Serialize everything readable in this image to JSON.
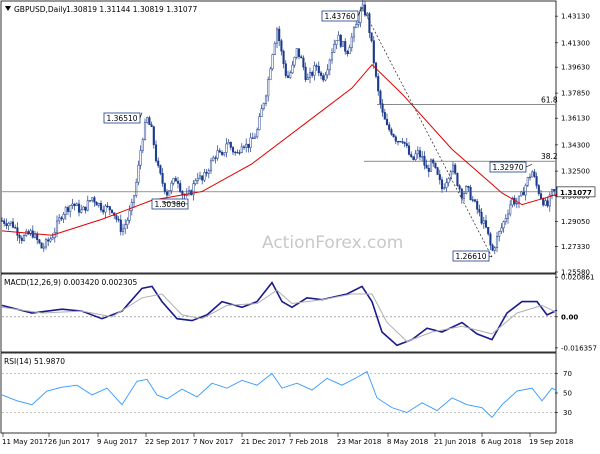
{
  "chart_data": [
    {
      "type": "candlestick",
      "panel": "price",
      "title": "GBPUSD,Daily",
      "ohlc_header": "1.30819 1.31144 1.30819 1.31077",
      "y_tick_labels": [
        "1.43130",
        "1.41300",
        "1.39630",
        "1.37850",
        "1.36130",
        "1.34300",
        "1.32500",
        "1.30800",
        "1.29050",
        "1.27330",
        "1.25580"
      ],
      "ylim": [
        1.2558,
        1.441
      ],
      "current_price": "1.31077",
      "x_tick_labels": [
        "11 May 2017",
        "26 Jun 2017",
        "9 Aug 2017",
        "22 Sep 2017",
        "7 Nov 2017",
        "21 Dec 2017",
        "7 Feb 2018",
        "23 Mar 2018",
        "8 May 2018",
        "21 Jun 2018",
        "6 Aug 2018",
        "19 Sep 2018"
      ],
      "key_points": [
        {
          "label": "1.36510",
          "value": 1.3651,
          "date": "20 Sep 2017"
        },
        {
          "label": "1.30380",
          "value": 1.3038,
          "date": "3 Oct 2017"
        },
        {
          "label": "1.43760",
          "value": 1.4376,
          "date": "17 Apr 2018"
        },
        {
          "label": "1.26610",
          "value": 1.2661,
          "date": "15 Aug 2018"
        },
        {
          "label": "1.32970",
          "value": 1.3297,
          "date": "20 Sep 2018"
        }
      ],
      "fib_levels": [
        {
          "label": "61.8",
          "value": 1.3708
        },
        {
          "label": "38.2",
          "value": 1.3318
        }
      ],
      "close_path": [
        [
          0,
          1.291
        ],
        [
          10,
          1.289
        ],
        [
          20,
          1.279
        ],
        [
          30,
          1.283
        ],
        [
          40,
          1.272
        ],
        [
          50,
          1.28
        ],
        [
          60,
          1.296
        ],
        [
          70,
          1.303
        ],
        [
          80,
          1.297
        ],
        [
          90,
          1.307
        ],
        [
          100,
          1.3
        ],
        [
          110,
          1.299
        ],
        [
          120,
          1.284
        ],
        [
          125,
          1.291
        ],
        [
          130,
          1.301
        ],
        [
          135,
          1.32
        ],
        [
          140,
          1.347
        ],
        [
          145,
          1.361
        ],
        [
          150,
          1.352
        ],
        [
          155,
          1.329
        ],
        [
          160,
          1.318
        ],
        [
          165,
          1.31
        ],
        [
          170,
          1.316
        ],
        [
          175,
          1.321
        ],
        [
          180,
          1.31
        ],
        [
          185,
          1.307
        ],
        [
          190,
          1.312
        ],
        [
          195,
          1.323
        ],
        [
          200,
          1.318
        ],
        [
          205,
          1.325
        ],
        [
          210,
          1.332
        ],
        [
          215,
          1.338
        ],
        [
          220,
          1.334
        ],
        [
          225,
          1.346
        ],
        [
          230,
          1.34
        ],
        [
          235,
          1.336
        ],
        [
          240,
          1.345
        ],
        [
          245,
          1.342
        ],
        [
          250,
          1.346
        ],
        [
          255,
          1.352
        ],
        [
          260,
          1.368
        ],
        [
          265,
          1.382
        ],
        [
          270,
          1.405
        ],
        [
          275,
          1.423
        ],
        [
          280,
          1.404
        ],
        [
          285,
          1.388
        ],
        [
          290,
          1.395
        ],
        [
          295,
          1.408
        ],
        [
          300,
          1.4
        ],
        [
          305,
          1.387
        ],
        [
          310,
          1.392
        ],
        [
          315,
          1.398
        ],
        [
          320,
          1.388
        ],
        [
          325,
          1.396
        ],
        [
          330,
          1.408
        ],
        [
          335,
          1.418
        ],
        [
          340,
          1.412
        ],
        [
          345,
          1.407
        ],
        [
          350,
          1.417
        ],
        [
          355,
          1.426
        ],
        [
          360,
          1.437
        ],
        [
          365,
          1.432
        ],
        [
          370,
          1.41
        ],
        [
          375,
          1.383
        ],
        [
          380,
          1.365
        ],
        [
          385,
          1.355
        ],
        [
          390,
          1.352
        ],
        [
          395,
          1.346
        ],
        [
          400,
          1.348
        ],
        [
          405,
          1.34
        ],
        [
          410,
          1.331
        ],
        [
          415,
          1.338
        ],
        [
          420,
          1.334
        ],
        [
          425,
          1.325
        ],
        [
          430,
          1.331
        ],
        [
          435,
          1.322
        ],
        [
          440,
          1.313
        ],
        [
          445,
          1.32
        ],
        [
          450,
          1.329
        ],
        [
          455,
          1.318
        ],
        [
          460,
          1.309
        ],
        [
          465,
          1.313
        ],
        [
          470,
          1.306
        ],
        [
          475,
          1.299
        ],
        [
          480,
          1.291
        ],
        [
          485,
          1.284
        ],
        [
          490,
          1.269
        ],
        [
          495,
          1.279
        ],
        [
          500,
          1.287
        ],
        [
          505,
          1.296
        ],
        [
          510,
          1.306
        ],
        [
          515,
          1.303
        ],
        [
          520,
          1.309
        ],
        [
          525,
          1.318
        ],
        [
          530,
          1.325
        ],
        [
          535,
          1.314
        ],
        [
          540,
          1.306
        ],
        [
          545,
          1.3
        ],
        [
          550,
          1.31
        ],
        [
          555,
          1.3108
        ]
      ],
      "ma_path": [
        [
          0,
          1.284
        ],
        [
          50,
          1.281
        ],
        [
          100,
          1.292
        ],
        [
          150,
          1.305
        ],
        [
          200,
          1.311
        ],
        [
          250,
          1.33
        ],
        [
          300,
          1.356
        ],
        [
          350,
          1.382
        ],
        [
          370,
          1.398
        ],
        [
          400,
          1.378
        ],
        [
          450,
          1.34
        ],
        [
          500,
          1.31
        ],
        [
          520,
          1.302
        ],
        [
          555,
          1.309
        ]
      ],
      "colors": {
        "ma": "#e00000",
        "candles": "#1a3a8c",
        "background": "#ffffff"
      }
    },
    {
      "type": "line",
      "panel": "macd",
      "title": "MACD(12,26,9) 0.003420 0.002305",
      "y_tick_labels": [
        "0.020861",
        "0.00",
        "-0.016357"
      ],
      "ylim": [
        -0.018,
        0.022
      ],
      "series": [
        {
          "name": "MACD",
          "color": "#1a1a8c",
          "values": [
            [
              0,
              0.006
            ],
            [
              30,
              0.002
            ],
            [
              60,
              0.004
            ],
            [
              80,
              0.003
            ],
            [
              100,
              -0.001
            ],
            [
              120,
              0.003
            ],
            [
              140,
              0.015
            ],
            [
              150,
              0.016
            ],
            [
              160,
              0.008
            ],
            [
              175,
              -0.001
            ],
            [
              190,
              -0.002
            ],
            [
              205,
              0.001
            ],
            [
              220,
              0.008
            ],
            [
              240,
              0.005
            ],
            [
              255,
              0.008
            ],
            [
              270,
              0.018
            ],
            [
              280,
              0.008
            ],
            [
              290,
              0.005
            ],
            [
              305,
              0.01
            ],
            [
              320,
              0.009
            ],
            [
              345,
              0.012
            ],
            [
              360,
              0.016
            ],
            [
              370,
              0.008
            ],
            [
              380,
              -0.008
            ],
            [
              395,
              -0.015
            ],
            [
              410,
              -0.012
            ],
            [
              425,
              -0.006
            ],
            [
              440,
              -0.008
            ],
            [
              460,
              -0.003
            ],
            [
              475,
              -0.009
            ],
            [
              490,
              -0.012
            ],
            [
              505,
              0.002
            ],
            [
              520,
              0.008
            ],
            [
              535,
              0.008
            ],
            [
              545,
              0.001
            ],
            [
              555,
              0.0034
            ]
          ]
        },
        {
          "name": "Signal",
          "color": "#b0b0b0",
          "values": [
            [
              0,
              0.005
            ],
            [
              40,
              0.002
            ],
            [
              80,
              0.003
            ],
            [
              110,
              0.0
            ],
            [
              140,
              0.01
            ],
            [
              160,
              0.012
            ],
            [
              180,
              0.001
            ],
            [
              200,
              -0.001
            ],
            [
              225,
              0.006
            ],
            [
              255,
              0.007
            ],
            [
              275,
              0.014
            ],
            [
              290,
              0.007
            ],
            [
              320,
              0.009
            ],
            [
              350,
              0.012
            ],
            [
              370,
              0.012
            ],
            [
              385,
              -0.003
            ],
            [
              405,
              -0.013
            ],
            [
              430,
              -0.008
            ],
            [
              460,
              -0.005
            ],
            [
              490,
              -0.009
            ],
            [
              515,
              0.002
            ],
            [
              540,
              0.006
            ],
            [
              555,
              0.0023
            ]
          ]
        }
      ]
    },
    {
      "type": "line",
      "panel": "rsi",
      "title": "RSI(14) 51.9870",
      "y_tick_labels": [
        "70",
        "50",
        "30"
      ],
      "ylim": [
        10,
        90
      ],
      "series": [
        {
          "name": "RSI",
          "color": "#3399ff",
          "values": [
            [
              0,
              48
            ],
            [
              15,
              42
            ],
            [
              30,
              38
            ],
            [
              45,
              52
            ],
            [
              60,
              56
            ],
            [
              75,
              58
            ],
            [
              90,
              48
            ],
            [
              105,
              55
            ],
            [
              120,
              38
            ],
            [
              135,
              62
            ],
            [
              145,
              64
            ],
            [
              155,
              48
            ],
            [
              165,
              44
            ],
            [
              180,
              54
            ],
            [
              195,
              46
            ],
            [
              210,
              60
            ],
            [
              225,
              55
            ],
            [
              240,
              63
            ],
            [
              255,
              58
            ],
            [
              270,
              70
            ],
            [
              280,
              55
            ],
            [
              295,
              60
            ],
            [
              310,
              53
            ],
            [
              325,
              65
            ],
            [
              340,
              58
            ],
            [
              355,
              66
            ],
            [
              365,
              72
            ],
            [
              375,
              45
            ],
            [
              390,
              35
            ],
            [
              405,
              30
            ],
            [
              420,
              40
            ],
            [
              435,
              32
            ],
            [
              450,
              45
            ],
            [
              465,
              38
            ],
            [
              480,
              35
            ],
            [
              490,
              25
            ],
            [
              500,
              38
            ],
            [
              515,
              52
            ],
            [
              530,
              55
            ],
            [
              540,
              42
            ],
            [
              550,
              55
            ],
            [
              555,
              52
            ]
          ]
        }
      ]
    }
  ],
  "watermark": "ActionForex.com"
}
